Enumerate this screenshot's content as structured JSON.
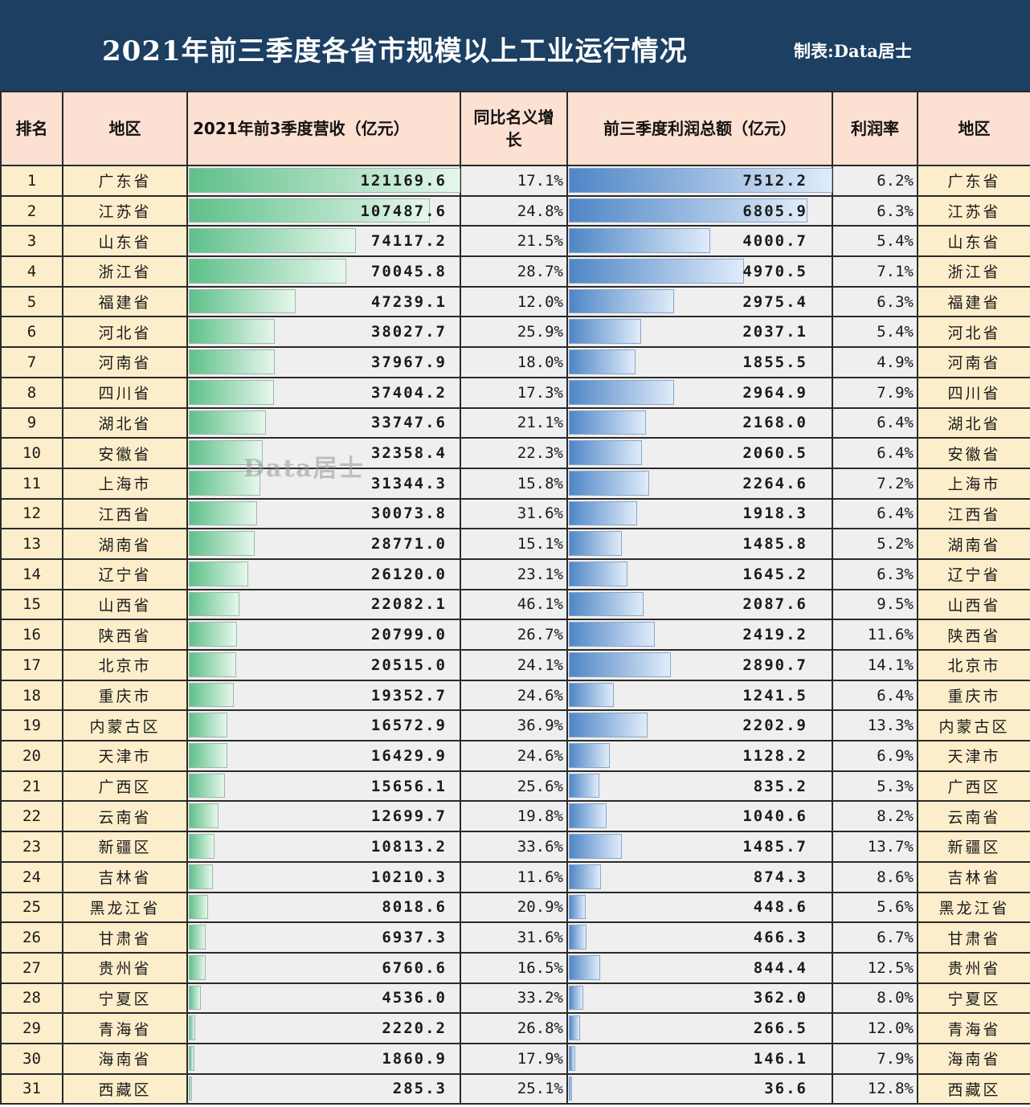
{
  "header": {
    "title": "2021年前三季度各省市规模以上工业运行情况",
    "credit": "制表:Data居士"
  },
  "watermark": "Data居士",
  "columns": [
    "排名",
    "地区",
    "2021年前3季度营收（亿元）",
    "同比名义增长",
    "前三季度利润总额（亿元）",
    "利润率",
    "地区"
  ],
  "colors": {
    "header_bg": "#1c3f62",
    "column_header_bg": "#fce0d2",
    "region_bg": "#fdeecb",
    "revenue_bar": "#5fc08a",
    "profit_bar": "#4f86c6"
  },
  "rows": [
    {
      "rank": "1",
      "region": "广东省",
      "revenue": "121169.6",
      "growth": "17.1%",
      "profit": "7512.2",
      "margin": "6.2%"
    },
    {
      "rank": "2",
      "region": "江苏省",
      "revenue": "107487.6",
      "growth": "24.8%",
      "profit": "6805.9",
      "margin": "6.3%"
    },
    {
      "rank": "3",
      "region": "山东省",
      "revenue": "74117.2",
      "growth": "21.5%",
      "profit": "4000.7",
      "margin": "5.4%"
    },
    {
      "rank": "4",
      "region": "浙江省",
      "revenue": "70045.8",
      "growth": "28.7%",
      "profit": "4970.5",
      "margin": "7.1%"
    },
    {
      "rank": "5",
      "region": "福建省",
      "revenue": "47239.1",
      "growth": "12.0%",
      "profit": "2975.4",
      "margin": "6.3%"
    },
    {
      "rank": "6",
      "region": "河北省",
      "revenue": "38027.7",
      "growth": "25.9%",
      "profit": "2037.1",
      "margin": "5.4%"
    },
    {
      "rank": "7",
      "region": "河南省",
      "revenue": "37967.9",
      "growth": "18.0%",
      "profit": "1855.5",
      "margin": "4.9%"
    },
    {
      "rank": "8",
      "region": "四川省",
      "revenue": "37404.2",
      "growth": "17.3%",
      "profit": "2964.9",
      "margin": "7.9%"
    },
    {
      "rank": "9",
      "region": "湖北省",
      "revenue": "33747.6",
      "growth": "21.1%",
      "profit": "2168.0",
      "margin": "6.4%"
    },
    {
      "rank": "10",
      "region": "安徽省",
      "revenue": "32358.4",
      "growth": "22.3%",
      "profit": "2060.5",
      "margin": "6.4%"
    },
    {
      "rank": "11",
      "region": "上海市",
      "revenue": "31344.3",
      "growth": "15.8%",
      "profit": "2264.6",
      "margin": "7.2%"
    },
    {
      "rank": "12",
      "region": "江西省",
      "revenue": "30073.8",
      "growth": "31.6%",
      "profit": "1918.3",
      "margin": "6.4%"
    },
    {
      "rank": "13",
      "region": "湖南省",
      "revenue": "28771.0",
      "growth": "15.1%",
      "profit": "1485.8",
      "margin": "5.2%"
    },
    {
      "rank": "14",
      "region": "辽宁省",
      "revenue": "26120.0",
      "growth": "23.1%",
      "profit": "1645.2",
      "margin": "6.3%"
    },
    {
      "rank": "15",
      "region": "山西省",
      "revenue": "22082.1",
      "growth": "46.1%",
      "profit": "2087.6",
      "margin": "9.5%"
    },
    {
      "rank": "16",
      "region": "陕西省",
      "revenue": "20799.0",
      "growth": "26.7%",
      "profit": "2419.2",
      "margin": "11.6%"
    },
    {
      "rank": "17",
      "region": "北京市",
      "revenue": "20515.0",
      "growth": "24.1%",
      "profit": "2890.7",
      "margin": "14.1%"
    },
    {
      "rank": "18",
      "region": "重庆市",
      "revenue": "19352.7",
      "growth": "24.6%",
      "profit": "1241.5",
      "margin": "6.4%"
    },
    {
      "rank": "19",
      "region": "内蒙古区",
      "revenue": "16572.9",
      "growth": "36.9%",
      "profit": "2202.9",
      "margin": "13.3%"
    },
    {
      "rank": "20",
      "region": "天津市",
      "revenue": "16429.9",
      "growth": "24.6%",
      "profit": "1128.2",
      "margin": "6.9%"
    },
    {
      "rank": "21",
      "region": "广西区",
      "revenue": "15656.1",
      "growth": "25.6%",
      "profit": "835.2",
      "margin": "5.3%"
    },
    {
      "rank": "22",
      "region": "云南省",
      "revenue": "12699.7",
      "growth": "19.8%",
      "profit": "1040.6",
      "margin": "8.2%"
    },
    {
      "rank": "23",
      "region": "新疆区",
      "revenue": "10813.2",
      "growth": "33.6%",
      "profit": "1485.7",
      "margin": "13.7%"
    },
    {
      "rank": "24",
      "region": "吉林省",
      "revenue": "10210.3",
      "growth": "11.6%",
      "profit": "874.3",
      "margin": "8.6%"
    },
    {
      "rank": "25",
      "region": "黑龙江省",
      "revenue": "8018.6",
      "growth": "20.9%",
      "profit": "448.6",
      "margin": "5.6%"
    },
    {
      "rank": "26",
      "region": "甘肃省",
      "revenue": "6937.3",
      "growth": "31.6%",
      "profit": "466.3",
      "margin": "6.7%"
    },
    {
      "rank": "27",
      "region": "贵州省",
      "revenue": "6760.6",
      "growth": "16.5%",
      "profit": "844.4",
      "margin": "12.5%"
    },
    {
      "rank": "28",
      "region": "宁夏区",
      "revenue": "4536.0",
      "growth": "33.2%",
      "profit": "362.0",
      "margin": "8.0%"
    },
    {
      "rank": "29",
      "region": "青海省",
      "revenue": "2220.2",
      "growth": "26.8%",
      "profit": "266.5",
      "margin": "12.0%"
    },
    {
      "rank": "30",
      "region": "海南省",
      "revenue": "1860.9",
      "growth": "17.9%",
      "profit": "146.1",
      "margin": "7.9%"
    },
    {
      "rank": "31",
      "region": "西藏区",
      "revenue": "285.3",
      "growth": "25.1%",
      "profit": "36.6",
      "margin": "12.8%"
    }
  ]
}
